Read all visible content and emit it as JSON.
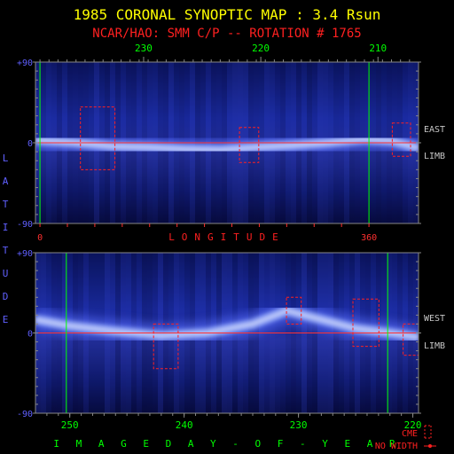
{
  "chart_data": [
    {
      "type": "heatmap",
      "title": "1985 CORONAL SYNOPTIC MAP : 3.4 Rsun",
      "subtitle": "NCAR/HAO: SMM C/P -- ROTATION # 1765",
      "panel_label": "EAST LIMB",
      "top_axis_ticks": [
        "230",
        "220",
        "210"
      ],
      "top_axis_values": [
        233.5,
        220.5,
        207.5
      ],
      "bottom_axis_ticks": [
        "0",
        "360"
      ],
      "bottom_axis_values": [
        0,
        360
      ],
      "bottom_axis_label": "LONGITUDE",
      "y_ticks": [
        "+90",
        "0",
        "-90"
      ],
      "ylabel": "LATITUDE",
      "ylim": [
        -90,
        90
      ],
      "x_range_day": [
        245.5,
        203.0
      ],
      "green_lines_day": [
        245.0,
        208.5
      ],
      "streamer_belt": {
        "day": [
          245.5,
          241,
          237,
          233,
          229,
          225,
          221,
          217,
          213,
          209,
          206,
          203
        ],
        "latitude": [
          3,
          0,
          -4,
          -5,
          -7,
          -8,
          -5,
          -3,
          0,
          4,
          2,
          -6
        ]
      },
      "cme_markers": [
        {
          "day": 238.6,
          "lat_top": 40,
          "lat_bottom": -30
        },
        {
          "day": 221.8,
          "lat_top": 17,
          "lat_bottom": -22
        },
        {
          "day": 204.9,
          "lat_top": 22,
          "lat_bottom": -15
        }
      ]
    },
    {
      "type": "heatmap",
      "panel_label": "WEST LIMB",
      "x_ticks": [
        "250",
        "240",
        "230",
        "220"
      ],
      "x_values": [
        250,
        240,
        230,
        220
      ],
      "xlabel": "IMAGE DAY-OF-YEAR",
      "y_ticks": [
        "+90",
        "0",
        "-90"
      ],
      "ylim": [
        -90,
        90
      ],
      "x_range_day": [
        253,
        219.5
      ],
      "green_lines_day": [
        250.3,
        222.2
      ],
      "streamer_belt": {
        "day": [
          253,
          250,
          246,
          242,
          238,
          234,
          231,
          228,
          225,
          222,
          219.5
        ],
        "latitude": [
          15,
          8,
          2,
          -3,
          0,
          10,
          25,
          15,
          5,
          0,
          -5
        ]
      },
      "cme_markers": [
        {
          "day": 241.6,
          "lat_top": 10,
          "lat_bottom": -40
        },
        {
          "day": 230.4,
          "lat_top": 40,
          "lat_bottom": 10
        },
        {
          "day": 224.1,
          "lat_top": 38,
          "lat_bottom": -15
        },
        {
          "day": 220.1,
          "lat_top": 10,
          "lat_bottom": -25
        }
      ]
    }
  ],
  "legend": {
    "cme_label": "CME",
    "no_width_label": "NO WIDTH"
  },
  "colors": {
    "title": "#ffff00",
    "subtitle": "#ff2020",
    "axis": "#888888",
    "tick_top": "#00ff00",
    "tick_left": "#6060ff",
    "equator": "#ff3030",
    "green_line": "#00ff00",
    "cme": "#ff2020",
    "xlabel_green": "#00ff00",
    "label_gray": "#c8c8c8"
  }
}
